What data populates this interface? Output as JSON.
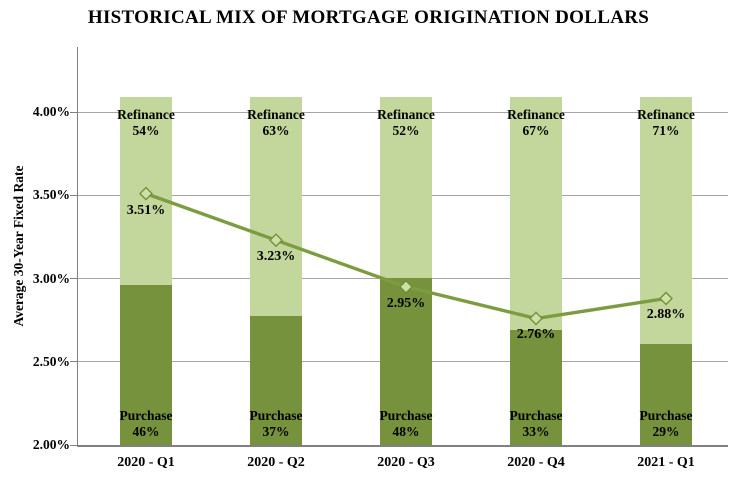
{
  "chart_data": {
    "type": "bar",
    "subtype": "stacked-100pct-bars-with-line-overlay",
    "title": "HISTORICAL MIX OF MORTGAGE ORIGINATION DOLLARS",
    "ylabel": "Average 30-Year Fixed Rate",
    "categories": [
      "2020 - Q1",
      "2020 - Q2",
      "2020 - Q3",
      "2020 - Q4",
      "2021 - Q1"
    ],
    "bar_series": [
      {
        "name": "Purchase",
        "values": [
          46,
          37,
          48,
          33,
          29
        ],
        "labels": [
          "46%",
          "37%",
          "48%",
          "33%",
          "29%"
        ],
        "color": "#76923c"
      },
      {
        "name": "Refinance",
        "values": [
          54,
          63,
          52,
          67,
          71
        ],
        "labels": [
          "54%",
          "63%",
          "52%",
          "67%",
          "71%"
        ],
        "color": "#c3d69b"
      }
    ],
    "line_series": {
      "name": "Average 30-Year Fixed Rate",
      "values": [
        3.51,
        3.23,
        2.95,
        2.76,
        2.88
      ],
      "labels": [
        "3.51%",
        "3.23%",
        "2.95%",
        "2.76%",
        "2.88%"
      ],
      "color": "#7d9c42",
      "marker_fill": "#cde0a5",
      "marker_stroke": "#6e8b38"
    },
    "yticks": [
      {
        "value": 4.0,
        "label": "4.00%"
      },
      {
        "value": 3.5,
        "label": "3.50%"
      },
      {
        "value": 3.0,
        "label": "3.00%"
      },
      {
        "value": 2.5,
        "label": "2.50%"
      },
      {
        "value": 2.0,
        "label": "2.00%"
      }
    ],
    "ylim": [
      2.0,
      4.0
    ],
    "grid": true,
    "legend": "none",
    "colors": {
      "grid": "#a6a6a6",
      "axis": "#808080",
      "text": "#000000",
      "background": "#ffffff"
    }
  }
}
